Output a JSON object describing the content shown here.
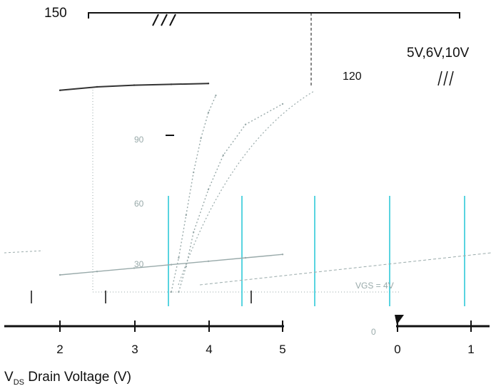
{
  "chart_data": [
    {
      "type": "line",
      "title": "",
      "xlabel": "V",
      "xlabel_sub": "DS",
      "xlabel_rest": " Drain Voltage (V)",
      "ylabel": "",
      "x_ticks": [
        "2",
        "3",
        "4",
        "5"
      ],
      "y_ticks_outer": [
        "150"
      ],
      "y_ticks_inner": [
        "90",
        "60",
        "30"
      ],
      "annotations": [
        "5V,6V,10V",
        "120",
        "VGS = 4V",
        "0",
        "1"
      ],
      "series": [
        {
          "x": [
            2,
            2.5,
            3,
            3.5,
            4,
            4.5,
            5
          ],
          "y": [
            10,
            12,
            14,
            16,
            18,
            20,
            22
          ]
        },
        {
          "x": [
            3.5,
            3.6,
            3.7,
            3.8,
            3.9,
            4.0,
            4.1
          ],
          "y": [
            0,
            20,
            45,
            70,
            90,
            105,
            115
          ]
        },
        {
          "x": [
            3.6,
            3.7,
            3.8,
            4.0,
            4.2,
            4.5,
            5.0
          ],
          "y": [
            0,
            15,
            35,
            60,
            80,
            98,
            110
          ]
        },
        {
          "x": [
            2.0,
            2.5,
            3.0,
            3.5,
            4.0
          ],
          "y": [
            118,
            120,
            121,
            121.5,
            122
          ]
        }
      ],
      "xlim": [
        1.5,
        6.2
      ],
      "ylim": [
        0,
        150
      ],
      "grid": false,
      "colors": {
        "axis": "#111111",
        "curve": "#333333",
        "accent": "#22c5d6",
        "faint": "#99aaaa"
      }
    }
  ]
}
